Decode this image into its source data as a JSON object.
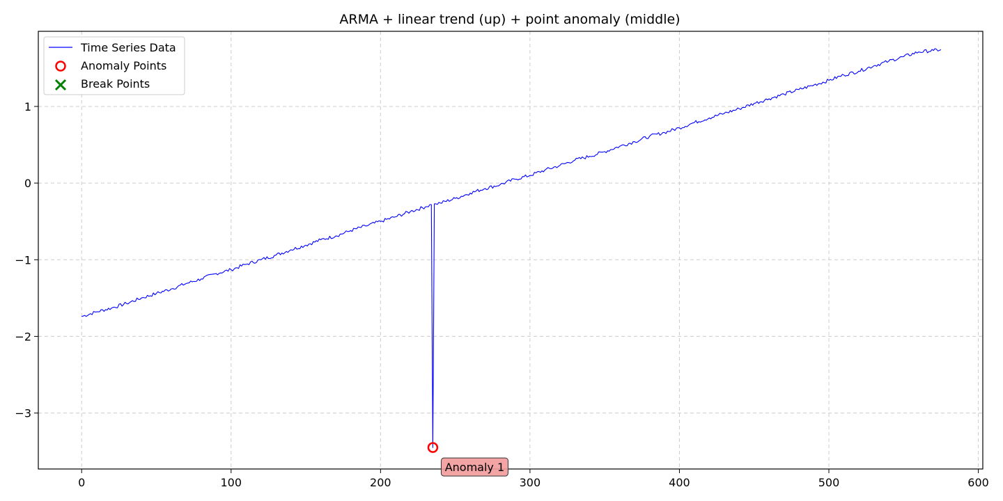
{
  "chart_data": {
    "type": "line",
    "title": "ARMA + linear trend (up) + point anomaly (middle)",
    "xlabel": "",
    "ylabel": "",
    "xlim": [
      -29,
      603
    ],
    "ylim": [
      -3.73,
      1.98
    ],
    "xticks": [
      0,
      100,
      200,
      300,
      400,
      500,
      600
    ],
    "xtick_labels": [
      "0",
      "100",
      "200",
      "300",
      "400",
      "500",
      "600"
    ],
    "yticks": [
      -3,
      -2,
      -1,
      0,
      1
    ],
    "ytick_labels": [
      "−3",
      "−2",
      "−1",
      "0",
      "1"
    ],
    "grid": true,
    "legend_position": "top-left",
    "series": [
      {
        "name": "Time Series Data",
        "color": "#0000ff",
        "trend": {
          "x_start": 0,
          "x_end": 575,
          "y_start": -1.74,
          "y_end": 1.74
        },
        "x": [
          0,
          10,
          20,
          30,
          40,
          50,
          60,
          70,
          80,
          90,
          100,
          110,
          120,
          130,
          140,
          150,
          160,
          170,
          180,
          190,
          200,
          210,
          220,
          230,
          234,
          235,
          236,
          237,
          240,
          250,
          260,
          270,
          280,
          290,
          300,
          310,
          320,
          330,
          340,
          350,
          360,
          370,
          380,
          390,
          400,
          410,
          420,
          430,
          440,
          450,
          460,
          470,
          480,
          490,
          500,
          510,
          520,
          530,
          540,
          550,
          560,
          570,
          575
        ],
        "values": [
          -1.74,
          -1.68,
          -1.63,
          -1.57,
          -1.5,
          -1.44,
          -1.38,
          -1.31,
          -1.25,
          -1.18,
          -1.13,
          -1.06,
          -1.0,
          -0.94,
          -0.87,
          -0.81,
          -0.74,
          -0.69,
          -0.62,
          -0.56,
          -0.5,
          -0.44,
          -0.37,
          -0.31,
          -0.28,
          -3.45,
          -0.27,
          -0.27,
          -0.26,
          -0.2,
          -0.13,
          -0.07,
          -0.02,
          0.05,
          0.1,
          0.17,
          0.23,
          0.3,
          0.35,
          0.41,
          0.48,
          0.54,
          0.61,
          0.66,
          0.72,
          0.79,
          0.85,
          0.91,
          0.97,
          1.04,
          1.1,
          1.16,
          1.22,
          1.28,
          1.34,
          1.41,
          1.46,
          1.53,
          1.59,
          1.65,
          1.71,
          1.73,
          1.74
        ]
      }
    ],
    "anomaly_points": {
      "name": "Anomaly Points",
      "color": "#ff0000",
      "points": [
        {
          "x": 235,
          "y": -3.45
        }
      ]
    },
    "break_points": {
      "name": "Break Points",
      "color": "#008000",
      "points": []
    },
    "annotations": [
      {
        "text": "Anomaly 1",
        "x": 235,
        "y": -3.45,
        "box_color": "#f29a9a"
      }
    ]
  }
}
